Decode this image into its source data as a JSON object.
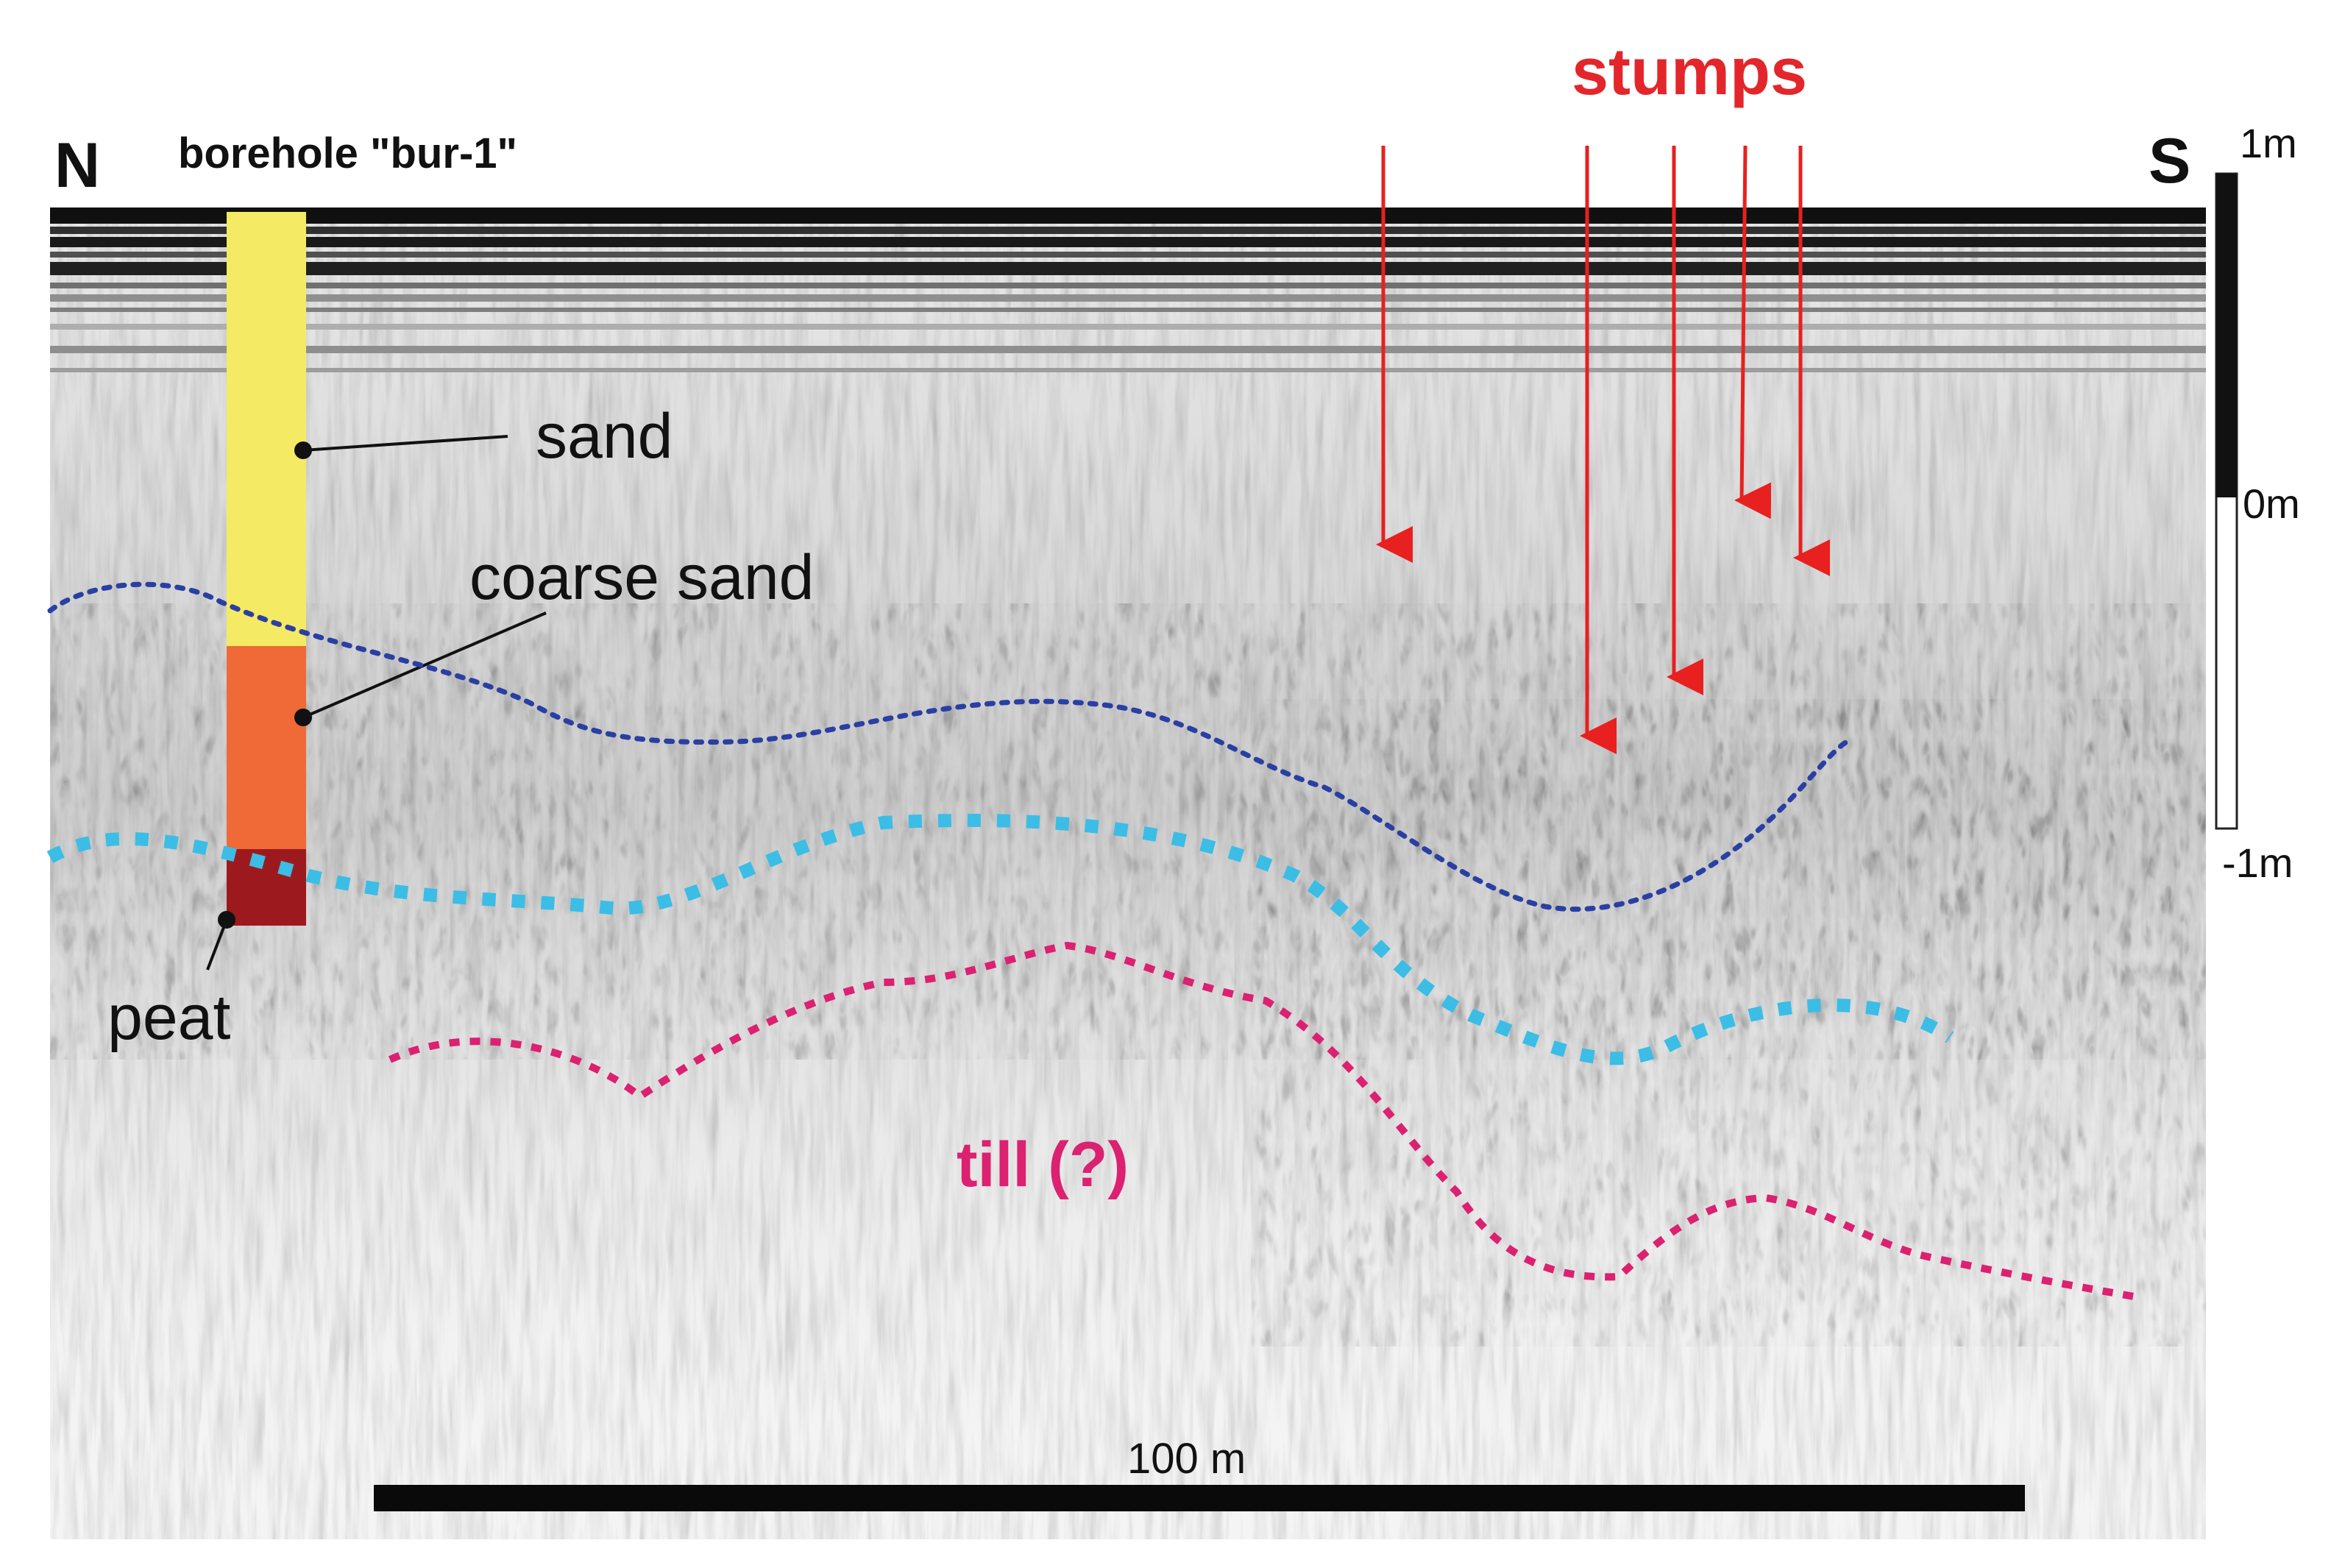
{
  "labels": {
    "north": "N",
    "south": "S",
    "borehole": "borehole \"bur-1\"",
    "sand": "sand",
    "coarse_sand": "coarse sand",
    "peat": "peat",
    "stumps": "stumps",
    "till": "till (?)",
    "scale_bar": "100 m",
    "depth_top": "1m",
    "depth_zero": "0m",
    "depth_bottom": "-1m"
  },
  "borehole_layers": [
    {
      "name": "sand",
      "color": "#f5ea63"
    },
    {
      "name": "coarse sand",
      "color": "#ef6a37"
    },
    {
      "name": "peat",
      "color": "#9c1a1d"
    }
  ],
  "colors": {
    "arrows": "#e8201f",
    "stumps_text": "#e3262b",
    "till_text": "#db2170",
    "line_dark_blue": "#2a3fa3",
    "line_cyan": "#3bbde6",
    "line_magenta": "#db2170"
  },
  "scale": {
    "length_m": 100,
    "depth_range_m": [
      -1,
      1
    ]
  }
}
